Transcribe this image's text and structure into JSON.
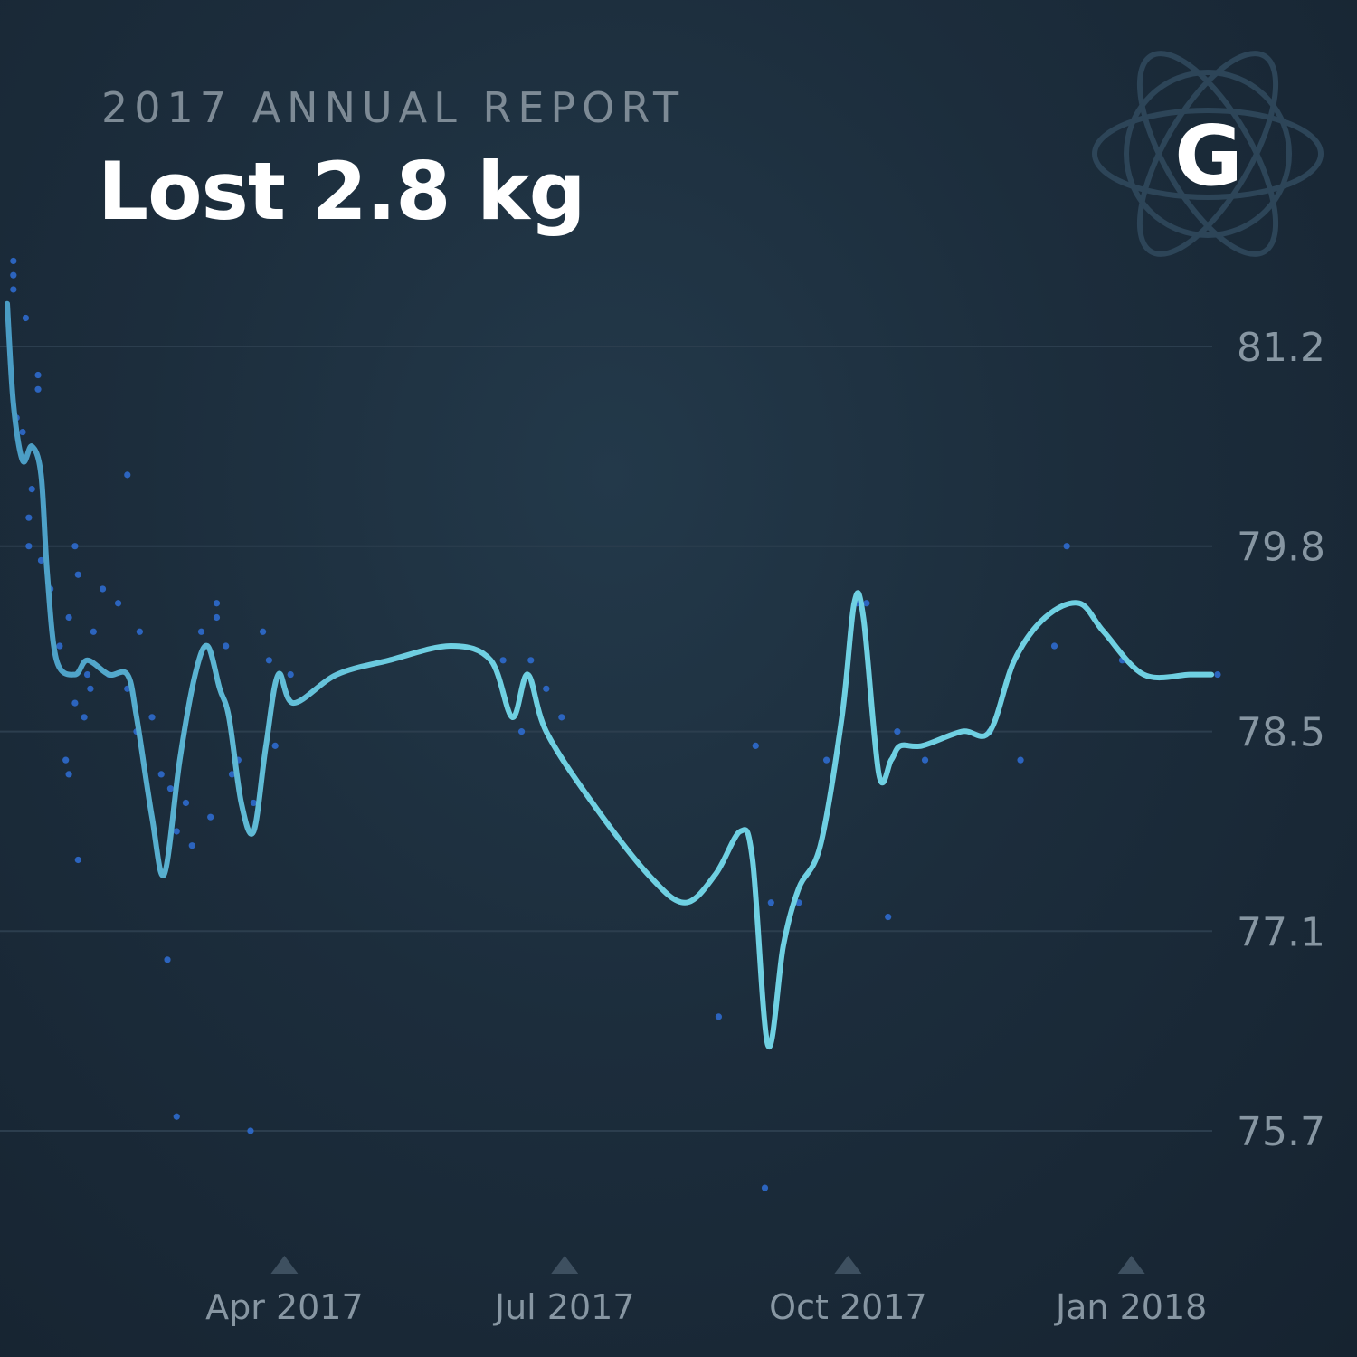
{
  "header": {
    "subtitle": "2017 ANNUAL REPORT",
    "headline": "Lost 2.8 kg"
  },
  "logo": {
    "letter": "G",
    "icon": "atom-orbit-logo-icon"
  },
  "colors": {
    "line": "#6fd0e2",
    "line_start": "#4a9cc4",
    "dots": "#2f6fd6",
    "grid": "#2c3e4e",
    "axis_text": "#8796a2",
    "marker": "#3e5060"
  },
  "chart_data": {
    "type": "line",
    "title": "",
    "xlabel": "",
    "ylabel": "",
    "ylim": [
      74.9,
      82.3
    ],
    "xlim": [
      "2017-01-01",
      "2018-02-08"
    ],
    "y_ticks": [
      81.2,
      79.8,
      78.5,
      77.1,
      75.7
    ],
    "y_tick_labels": [
      "81.2",
      "79.8",
      "78.5",
      "77.1",
      "75.7"
    ],
    "x_ticks": [
      "2017-04-01",
      "2017-07-01",
      "2017-10-01",
      "2018-01-01"
    ],
    "x_tick_labels": [
      "Apr 2017",
      "Jul 2017",
      "Oct 2017",
      "Jan 2018"
    ],
    "grid": true,
    "y_axis_position": "right",
    "series": [
      {
        "style": "smooth-line",
        "points": [
          [
            "2017-01-01",
            81.5
          ],
          [
            "2017-01-03",
            80.8
          ],
          [
            "2017-01-06",
            80.4
          ],
          [
            "2017-01-09",
            80.5
          ],
          [
            "2017-01-12",
            80.3
          ],
          [
            "2017-01-14",
            79.6
          ],
          [
            "2017-01-17",
            79.0
          ],
          [
            "2017-01-23",
            78.9
          ],
          [
            "2017-01-27",
            79.0
          ],
          [
            "2017-02-03",
            78.9
          ],
          [
            "2017-02-09",
            78.9
          ],
          [
            "2017-02-12",
            78.6
          ],
          [
            "2017-02-17",
            77.9
          ],
          [
            "2017-02-21",
            77.5
          ],
          [
            "2017-02-26",
            78.3
          ],
          [
            "2017-03-03",
            78.9
          ],
          [
            "2017-03-07",
            79.1
          ],
          [
            "2017-03-11",
            78.8
          ],
          [
            "2017-03-14",
            78.6
          ],
          [
            "2017-03-18",
            78.0
          ],
          [
            "2017-03-22",
            77.8
          ],
          [
            "2017-03-26",
            78.4
          ],
          [
            "2017-03-30",
            78.9
          ],
          [
            "2017-04-04",
            78.7
          ],
          [
            "2017-04-18",
            78.9
          ],
          [
            "2017-05-05",
            79.0
          ],
          [
            "2017-05-25",
            79.1
          ],
          [
            "2017-06-07",
            79.0
          ],
          [
            "2017-06-14",
            78.6
          ],
          [
            "2017-06-19",
            78.9
          ],
          [
            "2017-06-25",
            78.5
          ],
          [
            "2017-07-10",
            78.0
          ],
          [
            "2017-07-28",
            77.5
          ],
          [
            "2017-08-09",
            77.3
          ],
          [
            "2017-08-19",
            77.5
          ],
          [
            "2017-08-27",
            77.8
          ],
          [
            "2017-08-31",
            77.6
          ],
          [
            "2017-09-05",
            76.3
          ],
          [
            "2017-09-10",
            77.0
          ],
          [
            "2017-09-15",
            77.4
          ],
          [
            "2017-09-22",
            77.7
          ],
          [
            "2017-09-29",
            78.6
          ],
          [
            "2017-10-03",
            79.4
          ],
          [
            "2017-10-06",
            79.3
          ],
          [
            "2017-10-11",
            78.2
          ],
          [
            "2017-10-15",
            78.3
          ],
          [
            "2017-10-18",
            78.4
          ],
          [
            "2017-10-25",
            78.4
          ],
          [
            "2017-11-07",
            78.5
          ],
          [
            "2017-11-16",
            78.5
          ],
          [
            "2017-11-24",
            79.0
          ],
          [
            "2017-12-04",
            79.3
          ],
          [
            "2017-12-15",
            79.4
          ],
          [
            "2017-12-23",
            79.2
          ],
          [
            "2018-01-05",
            78.9
          ],
          [
            "2018-01-20",
            78.9
          ],
          [
            "2018-01-27",
            78.9
          ]
        ]
      },
      {
        "style": "scatter",
        "points": [
          [
            "2017-01-03",
            81.6
          ],
          [
            "2017-01-03",
            81.7
          ],
          [
            "2017-01-03",
            81.8
          ],
          [
            "2017-01-07",
            81.4
          ],
          [
            "2017-01-06",
            80.6
          ],
          [
            "2017-01-04",
            80.7
          ],
          [
            "2017-01-08",
            80.0
          ],
          [
            "2017-01-09",
            80.2
          ],
          [
            "2017-01-12",
            79.7
          ],
          [
            "2017-01-08",
            79.8
          ],
          [
            "2017-01-11",
            81.0
          ],
          [
            "2017-01-11",
            80.9
          ],
          [
            "2017-01-15",
            79.5
          ],
          [
            "2017-01-18",
            79.1
          ],
          [
            "2017-01-21",
            79.3
          ],
          [
            "2017-01-23",
            79.8
          ],
          [
            "2017-01-24",
            79.6
          ],
          [
            "2017-01-26",
            78.6
          ],
          [
            "2017-01-27",
            78.9
          ],
          [
            "2017-01-21",
            78.2
          ],
          [
            "2017-01-20",
            78.3
          ],
          [
            "2017-01-23",
            78.7
          ],
          [
            "2017-01-24",
            77.6
          ],
          [
            "2017-01-28",
            78.8
          ],
          [
            "2017-01-29",
            79.2
          ],
          [
            "2017-02-01",
            79.5
          ],
          [
            "2017-02-03",
            78.9
          ],
          [
            "2017-02-06",
            79.4
          ],
          [
            "2017-02-09",
            78.8
          ],
          [
            "2017-02-09",
            80.3
          ],
          [
            "2017-02-12",
            78.5
          ],
          [
            "2017-02-13",
            79.2
          ],
          [
            "2017-02-17",
            78.6
          ],
          [
            "2017-02-20",
            78.2
          ],
          [
            "2017-02-23",
            78.1
          ],
          [
            "2017-02-25",
            77.8
          ],
          [
            "2017-02-28",
            78.0
          ],
          [
            "2017-03-02",
            77.7
          ],
          [
            "2017-03-05",
            79.2
          ],
          [
            "2017-03-08",
            77.9
          ],
          [
            "2017-03-10",
            79.4
          ],
          [
            "2017-03-10",
            79.3
          ],
          [
            "2017-03-13",
            79.1
          ],
          [
            "2017-03-15",
            78.2
          ],
          [
            "2017-03-17",
            78.3
          ],
          [
            "2017-03-22",
            78.0
          ],
          [
            "2017-03-25",
            79.2
          ],
          [
            "2017-03-27",
            79.0
          ],
          [
            "2017-03-29",
            78.4
          ],
          [
            "2017-04-03",
            78.9
          ],
          [
            "2017-02-22",
            76.9
          ],
          [
            "2017-02-25",
            75.8
          ],
          [
            "2017-03-21",
            75.7
          ],
          [
            "2017-06-11",
            79.0
          ],
          [
            "2017-06-20",
            79.0
          ],
          [
            "2017-06-25",
            78.8
          ],
          [
            "2017-06-30",
            78.6
          ],
          [
            "2017-06-17",
            78.5
          ],
          [
            "2017-08-20",
            76.5
          ],
          [
            "2017-09-01",
            78.4
          ],
          [
            "2017-09-04",
            75.3
          ],
          [
            "2017-09-06",
            77.3
          ],
          [
            "2017-09-15",
            77.3
          ],
          [
            "2017-09-24",
            78.3
          ],
          [
            "2017-10-04",
            79.4
          ],
          [
            "2017-10-07",
            79.4
          ],
          [
            "2017-10-17",
            78.5
          ],
          [
            "2017-10-14",
            77.2
          ],
          [
            "2017-10-26",
            78.3
          ],
          [
            "2017-11-16",
            78.5
          ],
          [
            "2017-11-26",
            78.3
          ],
          [
            "2017-12-07",
            79.1
          ],
          [
            "2017-12-11",
            79.8
          ],
          [
            "2017-12-29",
            79.0
          ],
          [
            "2018-01-29",
            78.9
          ]
        ]
      }
    ]
  }
}
